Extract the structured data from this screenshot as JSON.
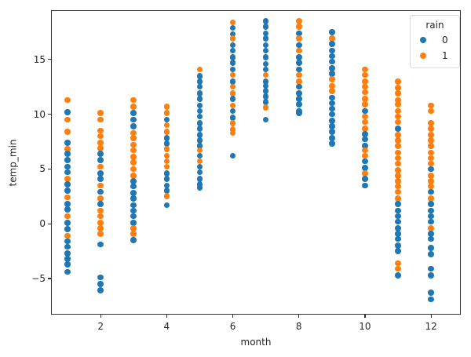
{
  "chart_data": {
    "type": "scatter",
    "title": "",
    "xlabel": "month",
    "ylabel": "temp_min",
    "xlim": [
      0.5,
      12.9
    ],
    "ylim": [
      -8.3,
      19.5
    ],
    "grid": false,
    "x_ticks": [
      2,
      4,
      6,
      8,
      10,
      12
    ],
    "x_tick_labels": [
      "2",
      "4",
      "6",
      "8",
      "10",
      "12"
    ],
    "y_ticks": [
      -5,
      0,
      5,
      10,
      15
    ],
    "y_tick_labels": [
      "−5",
      "0",
      "5",
      "10",
      "15"
    ],
    "legend": {
      "title": "rain",
      "position": "upper right",
      "entries": [
        {
          "label": "0",
          "color": "#1f77b4"
        },
        {
          "label": "1",
          "color": "#ff7f0e"
        }
      ]
    },
    "colors": {
      "rain0": "#1f77b4",
      "rain1": "#ff7f0e"
    },
    "series": [
      {
        "month": 1,
        "points": [
          [
            11.3,
            1
          ],
          [
            10.2,
            0
          ],
          [
            9.5,
            1
          ],
          [
            8.4,
            1
          ],
          [
            7.4,
            0
          ],
          [
            6.8,
            1
          ],
          [
            6.4,
            0
          ],
          [
            5.8,
            0
          ],
          [
            5.2,
            0
          ],
          [
            4.7,
            0
          ],
          [
            4.1,
            1
          ],
          [
            3.6,
            0
          ],
          [
            3.0,
            0
          ],
          [
            2.4,
            1
          ],
          [
            1.8,
            0
          ],
          [
            1.3,
            0
          ],
          [
            0.7,
            1
          ],
          [
            0.1,
            0
          ],
          [
            -0.5,
            0
          ],
          [
            -1.1,
            1
          ],
          [
            -1.6,
            0
          ],
          [
            -2.1,
            0
          ],
          [
            -2.7,
            0
          ],
          [
            -3.2,
            0
          ],
          [
            -3.7,
            0
          ],
          [
            -4.4,
            0
          ]
        ]
      },
      {
        "month": 2,
        "points": [
          [
            10.1,
            1
          ],
          [
            9.5,
            1
          ],
          [
            8.5,
            1
          ],
          [
            8.0,
            1
          ],
          [
            7.4,
            1
          ],
          [
            6.9,
            1
          ],
          [
            6.4,
            0
          ],
          [
            5.8,
            0
          ],
          [
            5.2,
            1
          ],
          [
            4.6,
            0
          ],
          [
            4.1,
            0
          ],
          [
            3.5,
            1
          ],
          [
            2.9,
            0
          ],
          [
            2.3,
            1
          ],
          [
            1.8,
            0
          ],
          [
            1.2,
            1
          ],
          [
            0.7,
            1
          ],
          [
            0.1,
            1
          ],
          [
            -0.4,
            1
          ],
          [
            -0.9,
            1
          ],
          [
            -1.9,
            0
          ],
          [
            -4.9,
            0
          ],
          [
            -5.5,
            0
          ],
          [
            -6.1,
            0
          ]
        ]
      },
      {
        "month": 3,
        "points": [
          [
            11.3,
            1
          ],
          [
            10.7,
            1
          ],
          [
            10.1,
            0
          ],
          [
            9.5,
            0
          ],
          [
            8.9,
            0
          ],
          [
            8.3,
            1
          ],
          [
            7.8,
            1
          ],
          [
            7.2,
            1
          ],
          [
            6.7,
            1
          ],
          [
            6.1,
            1
          ],
          [
            5.6,
            1
          ],
          [
            5.0,
            1
          ],
          [
            4.4,
            1
          ],
          [
            3.9,
            0
          ],
          [
            3.4,
            0
          ],
          [
            2.8,
            0
          ],
          [
            2.3,
            0
          ],
          [
            1.7,
            0
          ],
          [
            1.2,
            0
          ],
          [
            0.7,
            0
          ],
          [
            0.1,
            0
          ],
          [
            -0.4,
            1
          ],
          [
            -0.9,
            1
          ],
          [
            -1.5,
            0
          ]
        ]
      },
      {
        "month": 4,
        "points": [
          [
            10.7,
            1
          ],
          [
            10.1,
            1
          ],
          [
            9.5,
            0
          ],
          [
            9.0,
            1
          ],
          [
            8.4,
            1
          ],
          [
            7.8,
            0
          ],
          [
            7.3,
            0
          ],
          [
            6.8,
            1
          ],
          [
            6.2,
            1
          ],
          [
            5.7,
            1
          ],
          [
            5.2,
            1
          ],
          [
            4.6,
            0
          ],
          [
            4.1,
            0
          ],
          [
            3.5,
            0
          ],
          [
            3.0,
            0
          ],
          [
            2.5,
            1
          ],
          [
            1.7,
            0
          ]
        ]
      },
      {
        "month": 5,
        "points": [
          [
            14.1,
            1
          ],
          [
            13.5,
            0
          ],
          [
            13.0,
            0
          ],
          [
            12.5,
            0
          ],
          [
            11.9,
            0
          ],
          [
            11.4,
            0
          ],
          [
            10.8,
            0
          ],
          [
            10.3,
            0
          ],
          [
            9.8,
            0
          ],
          [
            9.2,
            0
          ],
          [
            8.7,
            0
          ],
          [
            8.1,
            0
          ],
          [
            7.6,
            0
          ],
          [
            7.1,
            0
          ],
          [
            6.7,
            1
          ],
          [
            6.2,
            0
          ],
          [
            5.7,
            1
          ],
          [
            5.2,
            0
          ],
          [
            4.7,
            0
          ],
          [
            4.1,
            0
          ],
          [
            3.6,
            0
          ],
          [
            3.3,
            0
          ]
        ]
      },
      {
        "month": 6,
        "points": [
          [
            18.4,
            1
          ],
          [
            17.9,
            0
          ],
          [
            17.3,
            0
          ],
          [
            16.9,
            1
          ],
          [
            16.3,
            0
          ],
          [
            15.8,
            0
          ],
          [
            15.2,
            0
          ],
          [
            14.7,
            0
          ],
          [
            14.1,
            0
          ],
          [
            13.6,
            1
          ],
          [
            13.0,
            0
          ],
          [
            12.5,
            1
          ],
          [
            11.9,
            1
          ],
          [
            11.4,
            0
          ],
          [
            10.8,
            1
          ],
          [
            10.3,
            0
          ],
          [
            9.7,
            0
          ],
          [
            9.2,
            1
          ],
          [
            8.6,
            1
          ],
          [
            8.3,
            1
          ],
          [
            6.2,
            0
          ]
        ]
      },
      {
        "month": 7,
        "points": [
          [
            18.5,
            0
          ],
          [
            18.0,
            0
          ],
          [
            17.4,
            0
          ],
          [
            16.9,
            0
          ],
          [
            16.3,
            0
          ],
          [
            15.8,
            0
          ],
          [
            15.2,
            0
          ],
          [
            14.6,
            0
          ],
          [
            14.1,
            0
          ],
          [
            13.6,
            1
          ],
          [
            13.0,
            0
          ],
          [
            12.6,
            0
          ],
          [
            12.1,
            0
          ],
          [
            11.6,
            0
          ],
          [
            11.1,
            0
          ],
          [
            10.6,
            1
          ],
          [
            9.5,
            0
          ]
        ]
      },
      {
        "month": 8,
        "points": [
          [
            18.5,
            1
          ],
          [
            18.0,
            1
          ],
          [
            17.4,
            0
          ],
          [
            16.9,
            1
          ],
          [
            16.3,
            0
          ],
          [
            15.8,
            1
          ],
          [
            15.2,
            0
          ],
          [
            14.7,
            0
          ],
          [
            14.1,
            0
          ],
          [
            13.6,
            1
          ],
          [
            13.0,
            1
          ],
          [
            12.5,
            0
          ],
          [
            11.9,
            0
          ],
          [
            11.4,
            0
          ],
          [
            10.9,
            0
          ],
          [
            10.3,
            0
          ],
          [
            10.1,
            0
          ]
        ]
      },
      {
        "month": 9,
        "points": [
          [
            17.5,
            0
          ],
          [
            16.9,
            1
          ],
          [
            16.4,
            0
          ],
          [
            15.8,
            0
          ],
          [
            15.3,
            0
          ],
          [
            14.8,
            0
          ],
          [
            14.2,
            0
          ],
          [
            13.7,
            0
          ],
          [
            13.2,
            1
          ],
          [
            12.6,
            1
          ],
          [
            12.1,
            1
          ],
          [
            11.5,
            0
          ],
          [
            11.0,
            0
          ],
          [
            10.5,
            0
          ],
          [
            10.0,
            0
          ],
          [
            9.4,
            0
          ],
          [
            8.9,
            0
          ],
          [
            8.4,
            0
          ],
          [
            7.8,
            0
          ],
          [
            7.3,
            0
          ]
        ]
      },
      {
        "month": 10,
        "points": [
          [
            14.1,
            1
          ],
          [
            13.6,
            1
          ],
          [
            13.0,
            1
          ],
          [
            12.5,
            1
          ],
          [
            12.0,
            1
          ],
          [
            11.4,
            1
          ],
          [
            10.9,
            1
          ],
          [
            10.3,
            0
          ],
          [
            9.8,
            1
          ],
          [
            9.3,
            1
          ],
          [
            8.7,
            1
          ],
          [
            8.2,
            0
          ],
          [
            7.7,
            0
          ],
          [
            7.1,
            0
          ],
          [
            6.7,
            1
          ],
          [
            6.2,
            1
          ],
          [
            5.7,
            0
          ],
          [
            5.1,
            0
          ],
          [
            4.6,
            1
          ],
          [
            4.1,
            0
          ],
          [
            3.5,
            0
          ]
        ]
      },
      {
        "month": 11,
        "points": [
          [
            13.0,
            1
          ],
          [
            12.4,
            1
          ],
          [
            11.9,
            1
          ],
          [
            11.3,
            1
          ],
          [
            10.9,
            1
          ],
          [
            10.3,
            1
          ],
          [
            9.8,
            1
          ],
          [
            9.3,
            1
          ],
          [
            8.7,
            0
          ],
          [
            8.1,
            1
          ],
          [
            7.6,
            1
          ],
          [
            7.1,
            1
          ],
          [
            6.5,
            1
          ],
          [
            6.0,
            1
          ],
          [
            5.5,
            1
          ],
          [
            4.9,
            1
          ],
          [
            4.4,
            1
          ],
          [
            3.9,
            1
          ],
          [
            3.4,
            1
          ],
          [
            2.9,
            1
          ],
          [
            2.3,
            1
          ],
          [
            1.8,
            0
          ],
          [
            1.2,
            0
          ],
          [
            0.7,
            0
          ],
          [
            0.2,
            0
          ],
          [
            -0.4,
            0
          ],
          [
            -0.9,
            0
          ],
          [
            -1.4,
            0
          ],
          [
            -2.0,
            0
          ],
          [
            -2.5,
            0
          ],
          [
            -3.6,
            1
          ],
          [
            -4.1,
            1
          ],
          [
            -4.7,
            0
          ]
        ]
      },
      {
        "month": 12,
        "points": [
          [
            10.8,
            1
          ],
          [
            10.3,
            1
          ],
          [
            9.2,
            1
          ],
          [
            8.7,
            1
          ],
          [
            8.1,
            1
          ],
          [
            7.6,
            1
          ],
          [
            7.1,
            1
          ],
          [
            6.5,
            1
          ],
          [
            6.0,
            1
          ],
          [
            5.5,
            1
          ],
          [
            5.0,
            0
          ],
          [
            4.4,
            1
          ],
          [
            3.9,
            1
          ],
          [
            3.4,
            1
          ],
          [
            2.9,
            0
          ],
          [
            2.3,
            1
          ],
          [
            1.8,
            0
          ],
          [
            1.2,
            0
          ],
          [
            0.7,
            0
          ],
          [
            0.2,
            0
          ],
          [
            -0.4,
            1
          ],
          [
            -0.9,
            0
          ],
          [
            -1.4,
            0
          ],
          [
            -2.2,
            0
          ],
          [
            -2.8,
            0
          ],
          [
            -4.1,
            0
          ],
          [
            -4.7,
            0
          ],
          [
            -6.3,
            0
          ],
          [
            -6.9,
            0
          ]
        ]
      }
    ]
  }
}
